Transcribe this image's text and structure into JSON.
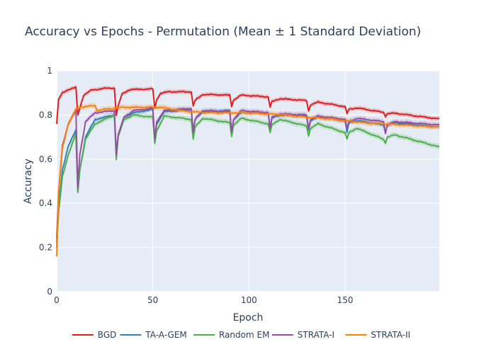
{
  "chart_data": {
    "type": "line",
    "title": "Accuracy vs Epochs - Permutation (Mean ± 1 Standard Deviation)",
    "xlabel": "Epoch",
    "ylabel": "Accuracy",
    "xlim": [
      0,
      199
    ],
    "ylim": [
      0,
      1
    ],
    "xticks": [
      0,
      50,
      100,
      150
    ],
    "yticks": [
      0,
      0.2,
      0.4,
      0.6,
      0.8,
      1
    ],
    "task_boundaries": [
      10,
      30,
      50,
      70,
      90,
      110,
      130,
      150,
      170
    ],
    "legend_position": "bottom-center",
    "series": [
      {
        "name": "BGD",
        "color": "#e41a1c",
        "band": 0.01,
        "points": [
          [
            0,
            0.76
          ],
          [
            1,
            0.87
          ],
          [
            3,
            0.9
          ],
          [
            6,
            0.915
          ],
          [
            10,
            0.925
          ],
          [
            11,
            0.8
          ],
          [
            12,
            0.83
          ],
          [
            14,
            0.89
          ],
          [
            18,
            0.912
          ],
          [
            24,
            0.92
          ],
          [
            30,
            0.922
          ],
          [
            31,
            0.8
          ],
          [
            32,
            0.84
          ],
          [
            34,
            0.895
          ],
          [
            38,
            0.915
          ],
          [
            50,
            0.918
          ],
          [
            51,
            0.83
          ],
          [
            52,
            0.87
          ],
          [
            54,
            0.898
          ],
          [
            58,
            0.905
          ],
          [
            70,
            0.905
          ],
          [
            71,
            0.84
          ],
          [
            72,
            0.866
          ],
          [
            76,
            0.893
          ],
          [
            90,
            0.89
          ],
          [
            91,
            0.84
          ],
          [
            92,
            0.868
          ],
          [
            96,
            0.89
          ],
          [
            110,
            0.882
          ],
          [
            111,
            0.835
          ],
          [
            112,
            0.86
          ],
          [
            116,
            0.874
          ],
          [
            130,
            0.865
          ],
          [
            131,
            0.818
          ],
          [
            132,
            0.846
          ],
          [
            136,
            0.858
          ],
          [
            150,
            0.838
          ],
          [
            151,
            0.805
          ],
          [
            152,
            0.826
          ],
          [
            156,
            0.832
          ],
          [
            170,
            0.812
          ],
          [
            171,
            0.795
          ],
          [
            172,
            0.806
          ],
          [
            176,
            0.808
          ],
          [
            199,
            0.782
          ]
        ]
      },
      {
        "name": "TA-A-GEM",
        "color": "#377eb8",
        "band": 0.01,
        "points": [
          [
            0,
            0.22
          ],
          [
            1,
            0.38
          ],
          [
            3,
            0.55
          ],
          [
            6,
            0.66
          ],
          [
            10,
            0.73
          ],
          [
            11,
            0.45
          ],
          [
            12,
            0.55
          ],
          [
            15,
            0.7
          ],
          [
            20,
            0.78
          ],
          [
            30,
            0.8
          ],
          [
            31,
            0.63
          ],
          [
            32,
            0.7
          ],
          [
            35,
            0.79
          ],
          [
            40,
            0.81
          ],
          [
            50,
            0.825
          ],
          [
            51,
            0.69
          ],
          [
            52,
            0.76
          ],
          [
            56,
            0.815
          ],
          [
            70,
            0.825
          ],
          [
            71,
            0.725
          ],
          [
            72,
            0.78
          ],
          [
            76,
            0.815
          ],
          [
            90,
            0.82
          ],
          [
            91,
            0.72
          ],
          [
            92,
            0.78
          ],
          [
            96,
            0.81
          ],
          [
            110,
            0.81
          ],
          [
            111,
            0.74
          ],
          [
            112,
            0.79
          ],
          [
            116,
            0.8
          ],
          [
            130,
            0.795
          ],
          [
            131,
            0.73
          ],
          [
            132,
            0.775
          ],
          [
            136,
            0.79
          ],
          [
            150,
            0.775
          ],
          [
            151,
            0.72
          ],
          [
            152,
            0.765
          ],
          [
            156,
            0.775
          ],
          [
            170,
            0.755
          ],
          [
            171,
            0.72
          ],
          [
            172,
            0.755
          ],
          [
            176,
            0.765
          ],
          [
            199,
            0.745
          ]
        ]
      },
      {
        "name": "Random EM",
        "color": "#4daf4a",
        "band": 0.012,
        "points": [
          [
            0,
            0.2
          ],
          [
            1,
            0.36
          ],
          [
            3,
            0.52
          ],
          [
            6,
            0.62
          ],
          [
            10,
            0.715
          ],
          [
            11,
            0.45
          ],
          [
            12,
            0.55
          ],
          [
            15,
            0.69
          ],
          [
            20,
            0.76
          ],
          [
            30,
            0.8
          ],
          [
            31,
            0.6
          ],
          [
            32,
            0.7
          ],
          [
            35,
            0.78
          ],
          [
            40,
            0.8
          ],
          [
            50,
            0.79
          ],
          [
            51,
            0.67
          ],
          [
            52,
            0.73
          ],
          [
            56,
            0.795
          ],
          [
            70,
            0.78
          ],
          [
            71,
            0.69
          ],
          [
            72,
            0.745
          ],
          [
            76,
            0.785
          ],
          [
            90,
            0.765
          ],
          [
            91,
            0.705
          ],
          [
            92,
            0.755
          ],
          [
            96,
            0.785
          ],
          [
            110,
            0.76
          ],
          [
            111,
            0.72
          ],
          [
            112,
            0.755
          ],
          [
            116,
            0.78
          ],
          [
            130,
            0.75
          ],
          [
            131,
            0.705
          ],
          [
            132,
            0.74
          ],
          [
            136,
            0.76
          ],
          [
            150,
            0.72
          ],
          [
            151,
            0.69
          ],
          [
            152,
            0.72
          ],
          [
            156,
            0.74
          ],
          [
            170,
            0.69
          ],
          [
            171,
            0.675
          ],
          [
            172,
            0.7
          ],
          [
            176,
            0.71
          ],
          [
            199,
            0.655
          ]
        ]
      },
      {
        "name": "STRATA-I",
        "color": "#984ea3",
        "band": 0.012,
        "points": [
          [
            0,
            0.24
          ],
          [
            1,
            0.45
          ],
          [
            3,
            0.66
          ],
          [
            6,
            0.76
          ],
          [
            10,
            0.82
          ],
          [
            11,
            0.47
          ],
          [
            12,
            0.62
          ],
          [
            15,
            0.77
          ],
          [
            20,
            0.81
          ],
          [
            30,
            0.82
          ],
          [
            31,
            0.62
          ],
          [
            32,
            0.71
          ],
          [
            35,
            0.79
          ],
          [
            40,
            0.82
          ],
          [
            50,
            0.83
          ],
          [
            51,
            0.69
          ],
          [
            52,
            0.77
          ],
          [
            56,
            0.82
          ],
          [
            70,
            0.83
          ],
          [
            71,
            0.72
          ],
          [
            72,
            0.78
          ],
          [
            76,
            0.82
          ],
          [
            90,
            0.815
          ],
          [
            91,
            0.725
          ],
          [
            92,
            0.78
          ],
          [
            96,
            0.82
          ],
          [
            110,
            0.81
          ],
          [
            111,
            0.74
          ],
          [
            112,
            0.785
          ],
          [
            116,
            0.805
          ],
          [
            130,
            0.8
          ],
          [
            131,
            0.74
          ],
          [
            132,
            0.78
          ],
          [
            136,
            0.795
          ],
          [
            150,
            0.78
          ],
          [
            151,
            0.74
          ],
          [
            152,
            0.77
          ],
          [
            156,
            0.785
          ],
          [
            170,
            0.77
          ],
          [
            171,
            0.72
          ],
          [
            172,
            0.755
          ],
          [
            176,
            0.77
          ],
          [
            199,
            0.755
          ]
        ]
      },
      {
        "name": "STRATA-II",
        "color": "#ff7f00",
        "band": 0.012,
        "points": [
          [
            0,
            0.16
          ],
          [
            1,
            0.45
          ],
          [
            3,
            0.65
          ],
          [
            6,
            0.76
          ],
          [
            10,
            0.825
          ],
          [
            12,
            0.835
          ],
          [
            15,
            0.838
          ],
          [
            20,
            0.842
          ],
          [
            21,
            0.82
          ],
          [
            24,
            0.825
          ],
          [
            30,
            0.83
          ],
          [
            34,
            0.835
          ],
          [
            40,
            0.835
          ],
          [
            50,
            0.835
          ],
          [
            55,
            0.835
          ],
          [
            60,
            0.825
          ],
          [
            70,
            0.815
          ],
          [
            80,
            0.81
          ],
          [
            90,
            0.81
          ],
          [
            100,
            0.81
          ],
          [
            110,
            0.805
          ],
          [
            120,
            0.8
          ],
          [
            130,
            0.79
          ],
          [
            140,
            0.785
          ],
          [
            150,
            0.775
          ],
          [
            160,
            0.765
          ],
          [
            170,
            0.76
          ],
          [
            180,
            0.755
          ],
          [
            199,
            0.745
          ]
        ]
      }
    ]
  }
}
